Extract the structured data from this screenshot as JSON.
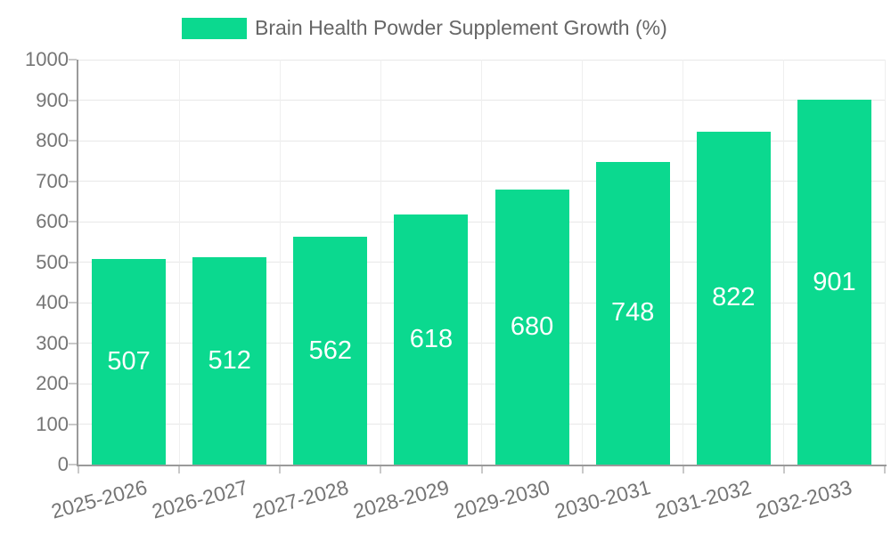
{
  "chart_data": {
    "type": "bar",
    "title": "Brain Health Powder Supplement Growth (%)",
    "categories": [
      "2025-2026",
      "2026-2027",
      "2027-2028",
      "2028-2029",
      "2029-2030",
      "2030-2031",
      "2031-2032",
      "2032-2033"
    ],
    "values": [
      507,
      512,
      562,
      618,
      680,
      748,
      822,
      901
    ],
    "xlabel": "",
    "ylabel": "",
    "ylim": [
      0,
      1000
    ],
    "ytick_step": 100,
    "ytick_labels": [
      "0",
      "100",
      "200",
      "300",
      "400",
      "500",
      "600",
      "700",
      "800",
      "900",
      "1000"
    ],
    "grid": true,
    "legend_position": "top",
    "value_labels_shown": true,
    "x_label_rotation_deg": -15
  },
  "legend": {
    "label": "Brain Health Powder Supplement Growth (%)",
    "swatch_icon": "legend-swatch-icon"
  },
  "colors": {
    "bar": "#0bd98f",
    "axis_label_text": "#757575",
    "legend_text": "#666666",
    "gridline_horizontal": "#e8e8e8",
    "gridline_vertical": "#efefef",
    "axis_line": "#9a9a9a",
    "tick": "#c9c9c9",
    "value_label_text": "#ffffff",
    "background": "#ffffff"
  }
}
